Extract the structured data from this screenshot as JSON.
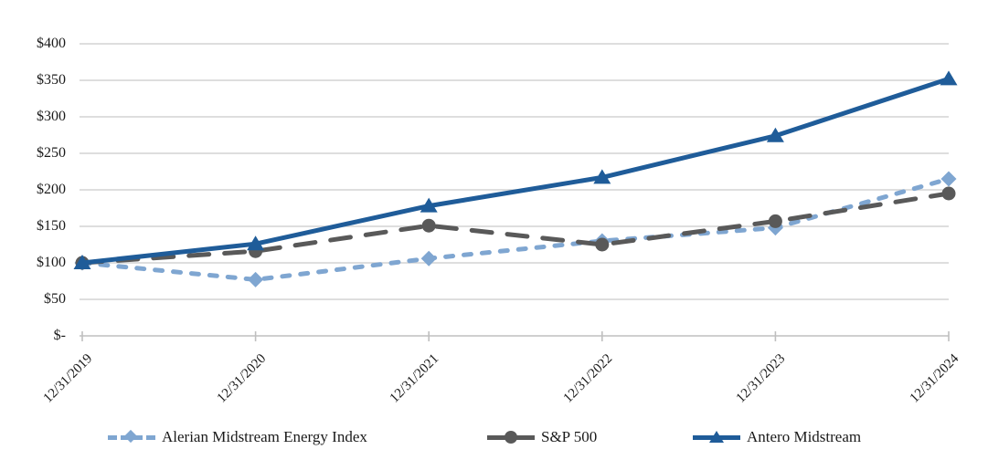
{
  "chart_data": {
    "type": "line",
    "title": "",
    "xlabel": "",
    "ylabel": "",
    "categories": [
      "12/31/2019",
      "12/31/2020",
      "12/31/2021",
      "12/31/2022",
      "12/31/2023",
      "12/31/2024"
    ],
    "series": [
      {
        "name": "Alerian Midstream Energy Index",
        "values": [
          100,
          77,
          106,
          130,
          148,
          215
        ],
        "color": "#7FA6D1",
        "line_style": "dashed",
        "marker": "diamond"
      },
      {
        "name": "S&P 500",
        "values": [
          100,
          116,
          151,
          125,
          157,
          195
        ],
        "color": "#595959",
        "line_style": "long-dash",
        "marker": "circle"
      },
      {
        "name": "Antero Midstream",
        "values": [
          100,
          126,
          178,
          217,
          274,
          352
        ],
        "color": "#1F5C99",
        "line_style": "solid",
        "marker": "triangle"
      }
    ],
    "y_ticks": [
      {
        "label": "$400",
        "value": 400
      },
      {
        "label": "$350",
        "value": 350
      },
      {
        "label": "$300",
        "value": 300
      },
      {
        "label": "$250",
        "value": 250
      },
      {
        "label": "$200",
        "value": 200
      },
      {
        "label": "$150",
        "value": 150
      },
      {
        "label": "$100",
        "value": 100
      },
      {
        "label": "$50",
        "value": 50
      },
      {
        "label": "$-",
        "value": 0
      }
    ],
    "ylim": [
      0,
      400
    ],
    "grid": true,
    "legend_position": "bottom",
    "grid_color": "#D4D4D4",
    "axis_color": "#BFBFBF",
    "text_color": "#1a1a1a"
  }
}
